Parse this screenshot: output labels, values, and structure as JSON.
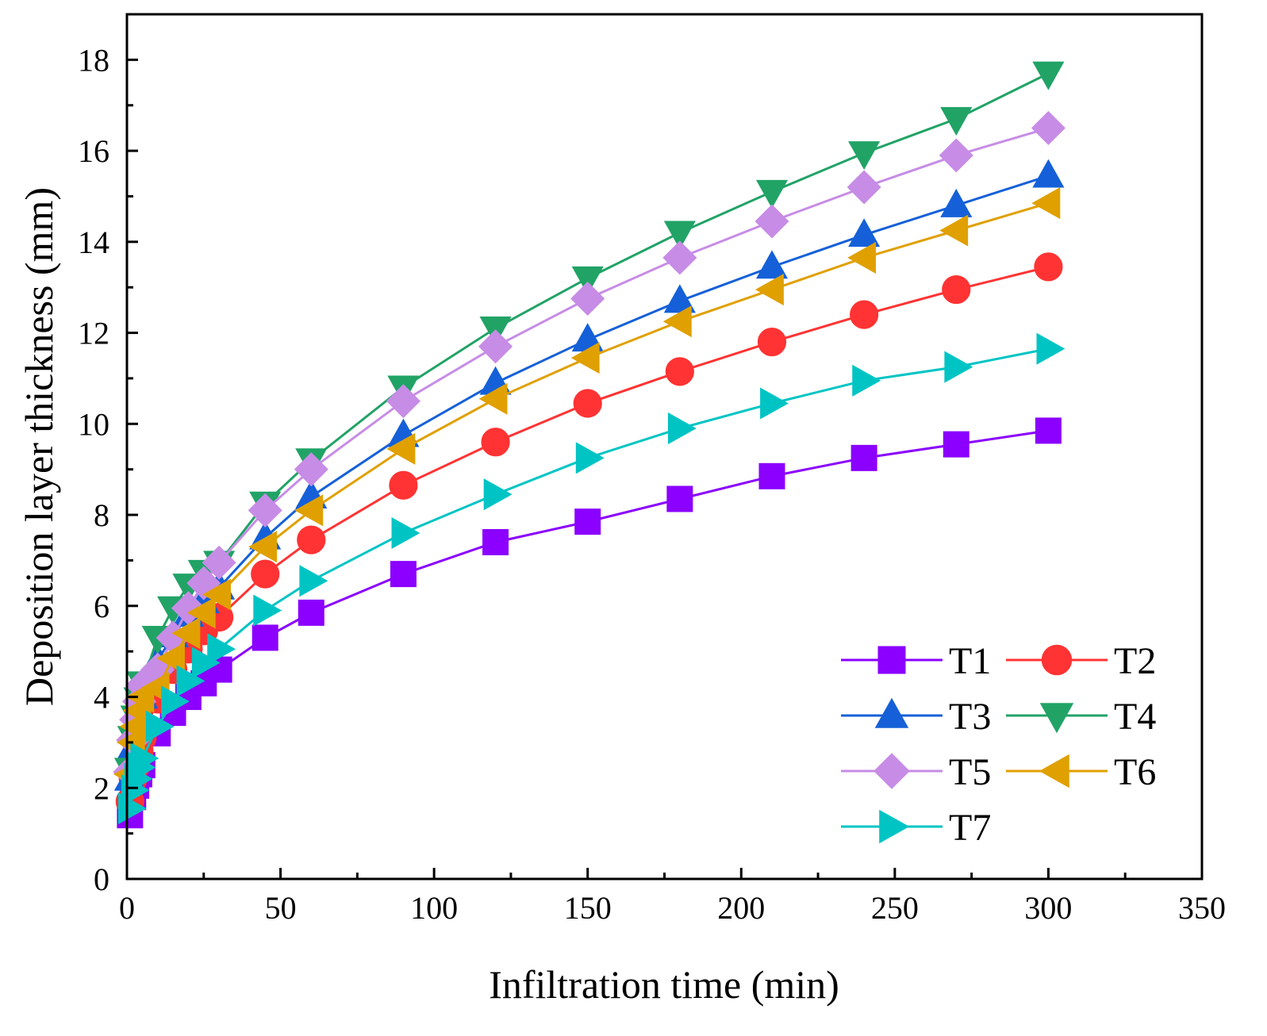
{
  "chart_data": {
    "type": "line",
    "title": "",
    "xlabel": "Infiltration time (min)",
    "ylabel": "Deposition layer thickness (mm)",
    "xlim": [
      0,
      350
    ],
    "ylim": [
      0,
      19
    ],
    "xticks": [
      0,
      50,
      100,
      150,
      200,
      250,
      300,
      350
    ],
    "yticks": [
      0,
      2,
      4,
      6,
      8,
      10,
      12,
      14,
      16,
      18
    ],
    "grid": false,
    "legend_position": "bottom-right",
    "x": [
      1,
      2,
      3,
      4,
      5,
      10,
      15,
      20,
      25,
      30,
      45,
      60,
      90,
      120,
      150,
      180,
      210,
      240,
      270,
      300
    ],
    "series": [
      {
        "name": "T1",
        "color": "#8B00FF",
        "marker": "square",
        "values": [
          1.4,
          1.8,
          2.05,
          2.3,
          2.5,
          3.2,
          3.65,
          4.0,
          4.3,
          4.6,
          5.3,
          5.85,
          6.7,
          7.4,
          7.85,
          8.35,
          8.85,
          9.25,
          9.55,
          9.85
        ]
      },
      {
        "name": "T2",
        "color": "#FF3333",
        "marker": "circle",
        "values": [
          1.7,
          2.2,
          2.5,
          2.8,
          3.1,
          3.95,
          4.6,
          5.05,
          5.45,
          5.75,
          6.7,
          7.45,
          8.65,
          9.6,
          10.45,
          11.15,
          11.8,
          12.4,
          12.95,
          13.45
        ]
      },
      {
        "name": "T3",
        "color": "#1560D8",
        "marker": "triangle-up",
        "values": [
          2.2,
          2.9,
          3.3,
          3.65,
          4.0,
          4.8,
          5.35,
          5.8,
          6.1,
          6.4,
          7.5,
          8.4,
          9.75,
          10.9,
          11.85,
          12.7,
          13.45,
          14.15,
          14.8,
          15.45
        ]
      },
      {
        "name": "T4",
        "color": "#21A366",
        "marker": "triangle-down",
        "values": [
          2.4,
          3.1,
          3.55,
          3.95,
          4.3,
          5.3,
          5.95,
          6.45,
          6.75,
          6.95,
          8.25,
          9.2,
          10.8,
          12.1,
          13.2,
          14.2,
          15.1,
          15.95,
          16.7,
          17.7
        ]
      },
      {
        "name": "T5",
        "color": "#C78CE6",
        "marker": "diamond",
        "values": [
          2.35,
          3.05,
          3.5,
          3.9,
          4.25,
          4.6,
          5.3,
          5.95,
          6.5,
          6.95,
          8.1,
          9.0,
          10.5,
          11.7,
          12.75,
          13.65,
          14.45,
          15.2,
          15.9,
          16.5
        ]
      },
      {
        "name": "T6",
        "color": "#E0A000",
        "marker": "triangle-left",
        "values": [
          2.3,
          3.0,
          3.35,
          3.7,
          4.0,
          4.2,
          4.85,
          5.4,
          5.85,
          6.25,
          7.3,
          8.1,
          9.45,
          10.55,
          11.45,
          12.25,
          12.95,
          13.65,
          14.25,
          14.85
        ]
      },
      {
        "name": "T7",
        "color": "#00C4C4",
        "marker": "triangle-right",
        "values": [
          1.55,
          1.95,
          2.2,
          2.45,
          2.65,
          3.35,
          3.9,
          4.35,
          4.75,
          5.05,
          5.9,
          6.55,
          7.6,
          8.45,
          9.25,
          9.9,
          10.45,
          10.95,
          11.25,
          11.65
        ]
      }
    ]
  }
}
